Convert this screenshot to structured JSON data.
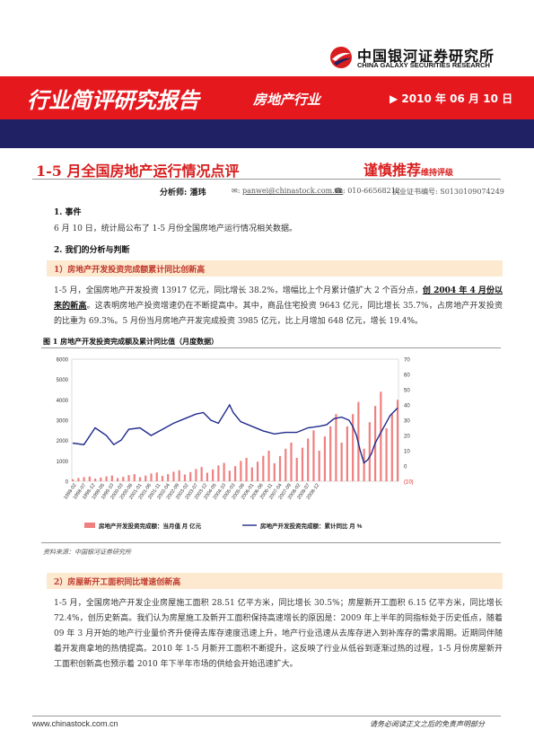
{
  "header": {
    "logo_cn": "中国银河证券研究所",
    "logo_en": "CHINA GALAXY SECURITIES RESEARCH",
    "report_type": "行业简评研究报告",
    "sector": "房地产行业",
    "date": "▶ 2010 年 06 月 10 日",
    "colors": {
      "red": "#e5181e",
      "navy": "#1f2164"
    }
  },
  "title": "1-5 月全国房地产运行情况点评",
  "rating": {
    "label": "谨慎推荐",
    "note": "维持评级"
  },
  "meta": {
    "analyst": "分析师: 潘玮",
    "email": "panwei@chinastock.com.cn",
    "phone": "☎: 010-66568212",
    "cert": "执业证书编号: S0130109074249"
  },
  "sections": {
    "s1_heading": "1.  事件",
    "s1_text": "6 月 10 日，统计局公布了 1-5 月份全国房地产运行情况相关数据。",
    "s2_heading": "2.  我们的分析与判断",
    "sub1": "1）房地产开发投资完成额累计同比创新高",
    "p1_a": "1-5 月，全国房地产开发投资 13917 亿元，同比增长 38.2%，增幅比上个月累计值扩大 2 个百分点，",
    "p1_hl": "创 2004 年 4 月份以来的新高",
    "p1_b": "。这表明房地产投资增速仍在不断提高中。其中，商品住宅投资 9643 亿元，同比增长 35.7%，占房地产开发投资的比重为 69.3%。5 月份当月房地产开发完成投资 3985 亿元，比上月增加 648 亿元，增长 19.4%。",
    "fig_title": "图 1   房地产开发投资完成额及累计同比值（月度数据）",
    "source": "资料来源：中国银河证券研究所",
    "sub2": "2）房屋新开工面积同比增速创新高",
    "p2": "1-5 月，全国房地产开发企业房屋施工面积 28.51 亿平方米，同比增长 30.5%；房屋新开工面积 6.15 亿平方米，同比增长 72.4%，创历史新高。我们认为房屋施工及新开工面积保持高速增长的原因是：2009 年上半年的同指标处于历史低点，随着 09 年 3 月开始的地产行业量价齐升使得去库存速度迅速上升，地产行业迅速从去库存进入到补库存的需求周期。近期同伴随着开发商拿地的热情提高。2010 年 1-5 月新开工面积不断提升，这反映了行业从低谷到逐渐过热的过程，1-5 月份房屋新开工面积创新高也预示着 2010 年下半年市场的供给会开始迅速扩大。"
  },
  "footer": {
    "website": "www.chinastock.com.cn",
    "disclaimer": "请务必阅读正文之后的免责声明部分"
  },
  "chart_data": {
    "type": "bar",
    "title": "",
    "left_axis": {
      "ticks": [
        "6000",
        "5000",
        "4000",
        "3000",
        "2000",
        "1000",
        "0"
      ],
      "ylim": [
        0,
        6000
      ]
    },
    "right_axis": {
      "ticks": [
        "70",
        "60",
        "50",
        "40",
        "30",
        "20",
        "10",
        "0",
        "(10)"
      ],
      "ylim": [
        -10,
        70
      ]
    },
    "x_ticks": [
      "1998-02",
      "1998-07",
      "1998-12",
      "1999-05",
      "1999-10",
      "2000-03",
      "2000-08",
      "2001-01",
      "2001-06",
      "2001-11",
      "2002-04",
      "2002-09",
      "2003-02",
      "2003-07",
      "2003-12",
      "2004-05",
      "2004-10",
      "2005-03",
      "2005-08",
      "2006-01",
      "2006-06",
      "2006-11",
      "2007-04",
      "2007-09",
      "2008-02",
      "2008-07",
      "2008-12",
      "2009-05",
      "2009-10",
      "2010-03"
    ],
    "x_ticks_visible": [
      "1998-02",
      "1998-07",
      "1998-12",
      "1999-05",
      "1999-10",
      "2000-03",
      "2000-08",
      "2001-01",
      "2001-06",
      "2001-11",
      "2002-04",
      "2002-09",
      "2003-02",
      "2003-07",
      "2003-12",
      "2004-05",
      "2004-10",
      "2005-03",
      "2005-08",
      "2006-01",
      "2006-06",
      "2006-11",
      "2007-04",
      "2007-09",
      "2008-02",
      "2008-07",
      "2008-12"
    ],
    "x_tick_labels": [
      "1998-02",
      "1998-07",
      "1998-12",
      "1999-05",
      "1999-10",
      "2000-03",
      "2000-08",
      "2001-01",
      "2001-06",
      "2001-11",
      "2002-04",
      "2002-09",
      "2003-02",
      "2003-07",
      "2003-12",
      "2004-05",
      "2004-10",
      "2005-03",
      "2005-08",
      "2006-01",
      "2006-06",
      "2006-11",
      "2007-04",
      "2007-09",
      "2008-02",
      "2008-07",
      "2008-12"
    ],
    "series": [
      {
        "name": "房地产开发投资完成额：当月值  月  亿元",
        "type": "bar",
        "axis": "left",
        "color": "#f08080",
        "points": [
          [
            0,
            100
          ],
          [
            3,
            160
          ],
          [
            6,
            200
          ],
          [
            9,
            230
          ],
          [
            12,
            130
          ],
          [
            15,
            180
          ],
          [
            18,
            240
          ],
          [
            21,
            280
          ],
          [
            24,
            160
          ],
          [
            27,
            220
          ],
          [
            30,
            300
          ],
          [
            33,
            350
          ],
          [
            36,
            200
          ],
          [
            39,
            280
          ],
          [
            42,
            380
          ],
          [
            45,
            430
          ],
          [
            48,
            260
          ],
          [
            51,
            350
          ],
          [
            54,
            470
          ],
          [
            57,
            540
          ],
          [
            60,
            330
          ],
          [
            63,
            450
          ],
          [
            66,
            600
          ],
          [
            69,
            700
          ],
          [
            72,
            420
          ],
          [
            75,
            580
          ],
          [
            78,
            780
          ],
          [
            81,
            900
          ],
          [
            84,
            520
          ],
          [
            87,
            740
          ],
          [
            90,
            1000
          ],
          [
            93,
            1150
          ],
          [
            96,
            680
          ],
          [
            99,
            960
          ],
          [
            102,
            1250
          ],
          [
            105,
            1500
          ],
          [
            108,
            880
          ],
          [
            111,
            1240
          ],
          [
            114,
            1600
          ],
          [
            117,
            1900
          ],
          [
            120,
            1150
          ],
          [
            123,
            1650
          ],
          [
            126,
            2100
          ],
          [
            129,
            2500
          ],
          [
            132,
            1500
          ],
          [
            135,
            2200
          ],
          [
            138,
            2700
          ],
          [
            141,
            3300
          ],
          [
            144,
            1900
          ],
          [
            147,
            2700
          ],
          [
            150,
            3300
          ],
          [
            153,
            3900
          ],
          [
            156,
            1600
          ],
          [
            159,
            2900
          ],
          [
            162,
            3700
          ],
          [
            165,
            4400
          ],
          [
            168,
            2600
          ],
          [
            171,
            3300
          ],
          [
            174,
            4000
          ]
        ]
      },
      {
        "name": "房地产开发投资完成额：累计同比  月  %",
        "type": "line",
        "axis": "right",
        "color": "#1f2a8c",
        "points": [
          [
            0,
            15
          ],
          [
            6,
            14
          ],
          [
            12,
            25
          ],
          [
            18,
            20
          ],
          [
            22,
            14
          ],
          [
            26,
            17
          ],
          [
            30,
            24
          ],
          [
            36,
            25
          ],
          [
            42,
            20
          ],
          [
            48,
            24
          ],
          [
            54,
            28
          ],
          [
            60,
            31
          ],
          [
            66,
            34
          ],
          [
            70,
            35
          ],
          [
            74,
            30
          ],
          [
            78,
            28
          ],
          [
            84,
            40
          ],
          [
            86,
            35
          ],
          [
            90,
            29
          ],
          [
            96,
            26
          ],
          [
            102,
            23
          ],
          [
            108,
            21
          ],
          [
            114,
            22
          ],
          [
            120,
            22
          ],
          [
            126,
            25
          ],
          [
            132,
            26
          ],
          [
            136,
            27
          ],
          [
            140,
            31
          ],
          [
            144,
            32
          ],
          [
            148,
            30
          ],
          [
            150,
            26
          ],
          [
            152,
            20
          ],
          [
            154,
            10
          ],
          [
            156,
            2
          ],
          [
            158,
            4
          ],
          [
            160,
            8
          ],
          [
            162,
            15
          ],
          [
            166,
            24
          ],
          [
            170,
            33
          ],
          [
            174,
            38
          ]
        ]
      }
    ]
  }
}
